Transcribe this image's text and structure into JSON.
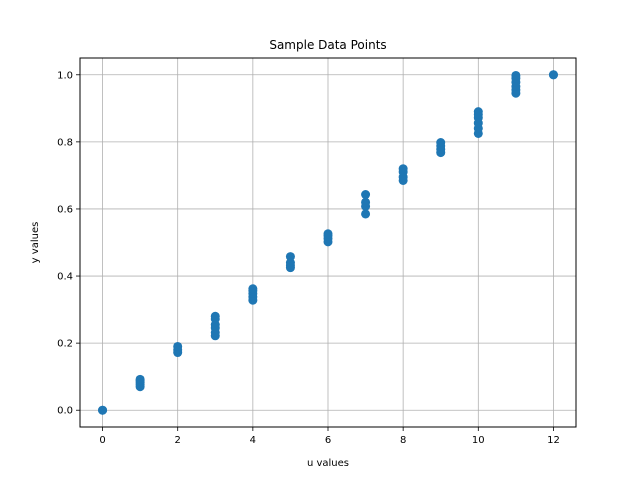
{
  "chart_data": {
    "type": "scatter",
    "title": "Sample Data Points",
    "xlabel": "u values",
    "ylabel": "y values",
    "xlim": [
      -0.6,
      12.6
    ],
    "ylim": [
      -0.05,
      1.05
    ],
    "x_ticks": [
      0,
      2,
      4,
      6,
      8,
      10,
      12
    ],
    "x_tick_labels": [
      "0",
      "2",
      "4",
      "6",
      "8",
      "10",
      "12"
    ],
    "y_ticks": [
      0.0,
      0.2,
      0.4,
      0.6,
      0.8,
      1.0
    ],
    "y_tick_labels": [
      "0.0",
      "0.2",
      "0.4",
      "0.6",
      "0.8",
      "1.0"
    ],
    "grid": true,
    "marker_color": "#1f77b4",
    "series": [
      {
        "points": [
          [
            0,
            0.0
          ],
          [
            0,
            0.0
          ],
          [
            1,
            0.07
          ],
          [
            1,
            0.076
          ],
          [
            1,
            0.082
          ],
          [
            1,
            0.088
          ],
          [
            1,
            0.092
          ],
          [
            2,
            0.172
          ],
          [
            2,
            0.18
          ],
          [
            2,
            0.19
          ],
          [
            3,
            0.222
          ],
          [
            3,
            0.232
          ],
          [
            3,
            0.245
          ],
          [
            3,
            0.255
          ],
          [
            3,
            0.272
          ],
          [
            3,
            0.28
          ],
          [
            4,
            0.328
          ],
          [
            4,
            0.338
          ],
          [
            4,
            0.348
          ],
          [
            4,
            0.356
          ],
          [
            4,
            0.362
          ],
          [
            5,
            0.425
          ],
          [
            5,
            0.432
          ],
          [
            5,
            0.44
          ],
          [
            5,
            0.458
          ],
          [
            6,
            0.502
          ],
          [
            6,
            0.512
          ],
          [
            6,
            0.52
          ],
          [
            6,
            0.526
          ],
          [
            7,
            0.585
          ],
          [
            7,
            0.608
          ],
          [
            7,
            0.62
          ],
          [
            7,
            0.643
          ],
          [
            8,
            0.685
          ],
          [
            8,
            0.695
          ],
          [
            8,
            0.71
          ],
          [
            8,
            0.72
          ],
          [
            9,
            0.768
          ],
          [
            9,
            0.778
          ],
          [
            9,
            0.788
          ],
          [
            9,
            0.798
          ],
          [
            10,
            0.825
          ],
          [
            10,
            0.84
          ],
          [
            10,
            0.856
          ],
          [
            10,
            0.872
          ],
          [
            10,
            0.882
          ],
          [
            10,
            0.89
          ],
          [
            11,
            0.945
          ],
          [
            11,
            0.955
          ],
          [
            11,
            0.965
          ],
          [
            11,
            0.978
          ],
          [
            11,
            0.99
          ],
          [
            11,
            0.998
          ],
          [
            12,
            1.0
          ],
          [
            12,
            1.0
          ]
        ]
      }
    ]
  }
}
